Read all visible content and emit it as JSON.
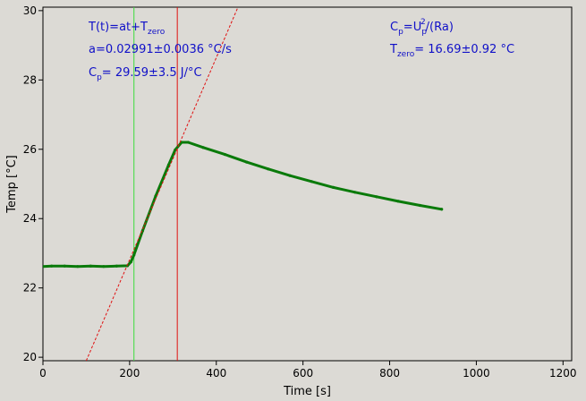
{
  "chart_data": {
    "type": "line",
    "title": "",
    "xlabel": "Time [s]",
    "ylabel": "Temp [°C]",
    "xlim": [
      0,
      1220
    ],
    "ylim": [
      19.9,
      30.1
    ],
    "xticks": [
      0,
      200,
      400,
      600,
      800,
      1000,
      1200
    ],
    "yticks": [
      20,
      22,
      24,
      26,
      28,
      30
    ],
    "grid": false,
    "colors": {
      "data": "#0a7a0a",
      "fit": "#e01010",
      "marker_start": "#3cdc3c",
      "marker_end": "#e01010",
      "annotation": "#1010c8",
      "background": "#dcdad5"
    },
    "series": [
      {
        "style": "thick-solid",
        "x": [
          0,
          20,
          50,
          80,
          110,
          140,
          170,
          195,
          203,
          210,
          230,
          260,
          290,
          305,
          320,
          335,
          370,
          420,
          470,
          520,
          570,
          620,
          670,
          720,
          770,
          820,
          870,
          920
        ],
        "y": [
          22.62,
          22.63,
          22.63,
          22.62,
          22.63,
          22.62,
          22.63,
          22.64,
          22.75,
          22.95,
          23.65,
          24.65,
          25.55,
          25.98,
          26.2,
          26.2,
          26.05,
          25.85,
          25.63,
          25.43,
          25.24,
          25.07,
          24.9,
          24.76,
          24.63,
          24.5,
          24.38,
          24.27
        ]
      },
      {
        "style": "dashed",
        "x": [
          100,
          450
        ],
        "y": [
          19.9,
          30.1
        ]
      }
    ],
    "vlines": [
      210,
      310
    ],
    "annotations": {
      "left": {
        "line1": {
          "main": "T(t)=at+T",
          "sub": "zero"
        },
        "line2": "a=0.02991±0.0036 °C/s",
        "line3": {
          "main": "C",
          "sub": "p",
          "rest": "= 29.59±3.5 J/°C"
        }
      },
      "right": {
        "line1": {
          "main": "C",
          "sub": "p",
          "mid": "=U",
          "sub2": "p",
          "sup": "2",
          "rest": "/(Ra)"
        },
        "line2": {
          "main": "T",
          "sub": "zero",
          "rest": "= 16.69±0.92 °C"
        }
      }
    }
  }
}
